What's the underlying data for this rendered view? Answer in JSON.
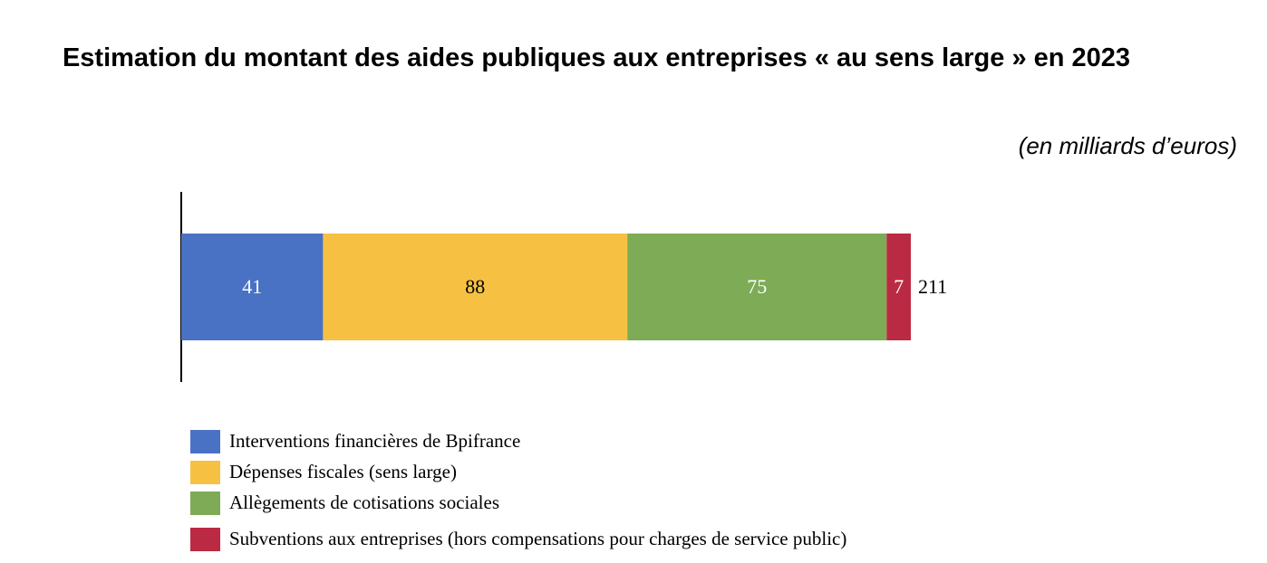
{
  "chart_data": {
    "type": "stacked_barh",
    "title": "Estimation du montant des aides publiques aux entreprises « au sens large » en 2023",
    "subtitle": "(en milliards d’euros)",
    "series": [
      {
        "name": "Interventions financières de Bpifrance",
        "color": "#4a72c4",
        "values": [
          41
        ]
      },
      {
        "name": "Dépenses fiscales (sens large)",
        "color": "#f6c143",
        "values": [
          88
        ]
      },
      {
        "name": "Allègements de cotisations sociales",
        "color": "#7eab55",
        "values": [
          75
        ]
      },
      {
        "name": "Subventions aux entreprises (hors compensations pour charges de service public)",
        "color": "#bb2a43",
        "values": [
          7
        ]
      }
    ],
    "total": 211
  }
}
